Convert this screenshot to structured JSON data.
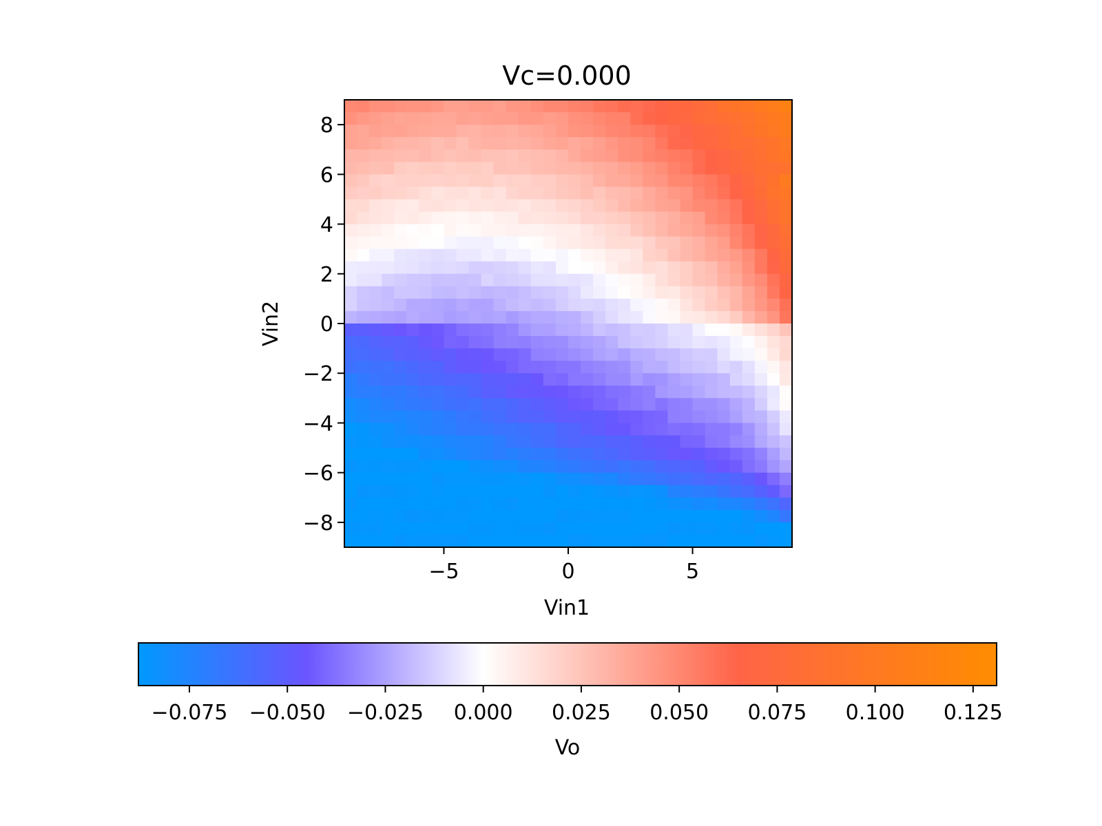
{
  "chart_data": {
    "type": "heatmap",
    "title": "Vc=0.000",
    "xlabel": "Vin1",
    "ylabel": "Vin2",
    "xlim": [
      -9,
      9
    ],
    "ylim": [
      -9,
      9
    ],
    "grid_n": 36,
    "x_ticks": [
      -5,
      0,
      5
    ],
    "x_tick_labels": [
      "−5",
      "0",
      "5"
    ],
    "y_ticks": [
      8,
      6,
      4,
      2,
      0,
      -2,
      -4,
      -6,
      -8
    ],
    "y_tick_labels": [
      "8",
      "6",
      "4",
      "2",
      "0",
      "−2",
      "−4",
      "−6",
      "−8"
    ],
    "z_samples": [
      {
        "vin1": -9,
        "vin2": 9,
        "vo": 0.04
      },
      {
        "vin1": 9,
        "vin2": 9,
        "vo": 0.13
      },
      {
        "vin1": 9,
        "vin2": 5,
        "vo": 0.08
      },
      {
        "vin1": -9,
        "vin2": 5,
        "vo": 0.0
      },
      {
        "vin1": -9,
        "vin2": 0,
        "vo": -0.03
      },
      {
        "vin1": 9,
        "vin2": -2,
        "vo": 0.0
      },
      {
        "vin1": 0,
        "vin2": 0,
        "vo": -0.015
      },
      {
        "vin1": -6,
        "vin2": -6,
        "vo": -0.05
      },
      {
        "vin1": 0,
        "vin2": -7,
        "vo": -0.045
      },
      {
        "vin1": -9,
        "vin2": -9,
        "vo": -0.08
      },
      {
        "vin1": 9,
        "vin2": -9,
        "vo": -0.07
      }
    ],
    "colorbar": {
      "label": "Vo",
      "range": [
        -0.088,
        0.131
      ],
      "ticks": [
        -0.075,
        -0.05,
        -0.025,
        0.0,
        0.025,
        0.05,
        0.075,
        0.1,
        0.125
      ],
      "tick_labels": [
        "−0.075",
        "−0.050",
        "−0.025",
        "0.000",
        "0.025",
        "0.050",
        "0.075",
        "0.100",
        "0.125"
      ],
      "placement": "bottom"
    },
    "colormap": [
      {
        "v": -0.088,
        "color": "#0099ff"
      },
      {
        "v": -0.045,
        "color": "#6b55ff"
      },
      {
        "v": 0.0,
        "color": "#ffffff"
      },
      {
        "v": 0.065,
        "color": "#ff6447"
      },
      {
        "v": 0.131,
        "color": "#ff8c00"
      }
    ]
  }
}
